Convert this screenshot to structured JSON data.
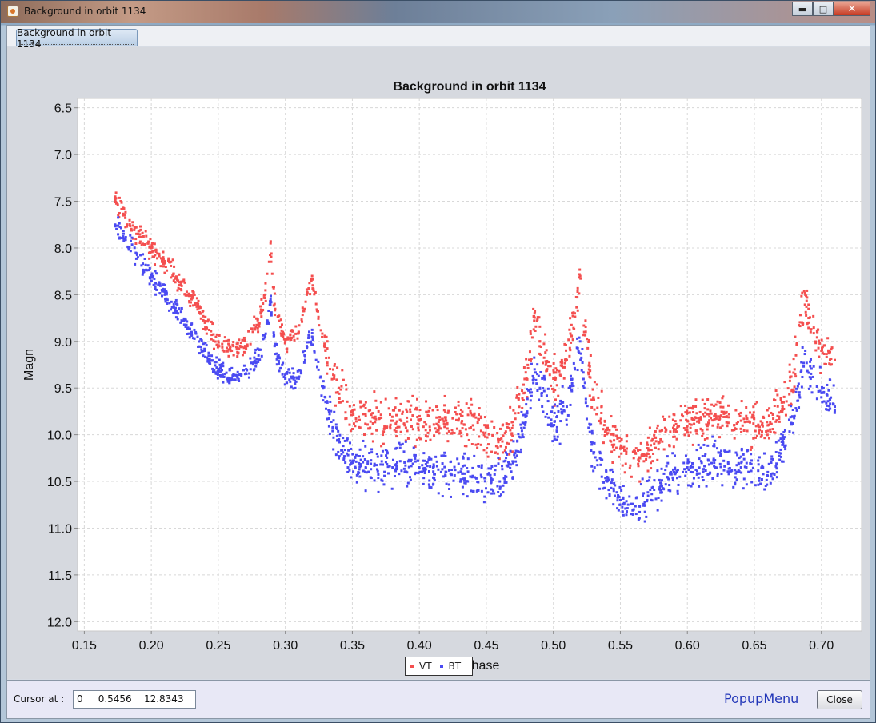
{
  "window": {
    "title": "Background in orbit 1134",
    "controls": [
      "minimize-icon",
      "maximize-icon",
      "close-icon"
    ]
  },
  "tabs": [
    {
      "label": "Background in orbit 1134",
      "selected": true
    }
  ],
  "colors": {
    "vt": "#f44f4f",
    "bt": "#4a4af2",
    "plot_bg": "#ffffff",
    "grid": "#d8d8d8"
  },
  "chart_data": {
    "type": "scatter",
    "title": "Background in orbit 1134",
    "xlabel": "Orb.phase",
    "ylabel": "Magn",
    "xlim": [
      0.145,
      0.73
    ],
    "ylim": [
      6.4,
      12.1
    ],
    "y_inverted": true,
    "xticks": [
      "0.15",
      "0.20",
      "0.25",
      "0.30",
      "0.35",
      "0.40",
      "0.45",
      "0.50",
      "0.55",
      "0.60",
      "0.65",
      "0.70"
    ],
    "yticks": [
      "6.5",
      "7.0",
      "7.5",
      "8.0",
      "8.5",
      "9.0",
      "9.5",
      "10.0",
      "10.5",
      "11.0",
      "11.5",
      "12.0"
    ],
    "grid": true,
    "legend_placement": "bottom-center",
    "series": [
      {
        "name": "VT",
        "color": "#f44f4f",
        "x": [
          0.173,
          0.18,
          0.19,
          0.2,
          0.21,
          0.22,
          0.23,
          0.24,
          0.25,
          0.26,
          0.27,
          0.28,
          0.285,
          0.289,
          0.292,
          0.3,
          0.31,
          0.316,
          0.32,
          0.323,
          0.33,
          0.34,
          0.35,
          0.36,
          0.38,
          0.4,
          0.42,
          0.44,
          0.46,
          0.47,
          0.48,
          0.486,
          0.49,
          0.5,
          0.51,
          0.516,
          0.52,
          0.523,
          0.53,
          0.54,
          0.55,
          0.56,
          0.57,
          0.58,
          0.59,
          0.6,
          0.62,
          0.64,
          0.66,
          0.67,
          0.68,
          0.688,
          0.692,
          0.7,
          0.71
        ],
        "y": [
          7.5,
          7.65,
          7.85,
          8.0,
          8.15,
          8.35,
          8.55,
          8.8,
          9.0,
          9.1,
          9.05,
          8.8,
          8.5,
          7.95,
          8.6,
          9.0,
          8.9,
          8.5,
          8.3,
          8.6,
          9.1,
          9.5,
          9.75,
          9.8,
          9.85,
          9.85,
          9.85,
          9.9,
          10.05,
          9.9,
          9.4,
          8.7,
          9.0,
          9.4,
          9.2,
          8.7,
          8.3,
          8.9,
          9.6,
          9.95,
          10.15,
          10.25,
          10.2,
          10.05,
          9.9,
          9.85,
          9.8,
          9.85,
          9.9,
          9.75,
          9.3,
          8.5,
          8.9,
          9.1,
          9.2
        ]
      },
      {
        "name": "BT",
        "color": "#4a4af2",
        "x": [
          0.173,
          0.18,
          0.19,
          0.2,
          0.21,
          0.22,
          0.23,
          0.24,
          0.25,
          0.26,
          0.27,
          0.28,
          0.285,
          0.289,
          0.292,
          0.3,
          0.31,
          0.316,
          0.32,
          0.323,
          0.33,
          0.34,
          0.35,
          0.36,
          0.38,
          0.4,
          0.42,
          0.44,
          0.46,
          0.47,
          0.48,
          0.486,
          0.49,
          0.5,
          0.51,
          0.516,
          0.52,
          0.523,
          0.53,
          0.54,
          0.55,
          0.56,
          0.57,
          0.58,
          0.59,
          0.6,
          0.62,
          0.64,
          0.66,
          0.67,
          0.68,
          0.688,
          0.692,
          0.7,
          0.71
        ],
        "y": [
          7.75,
          7.9,
          8.1,
          8.3,
          8.5,
          8.7,
          8.9,
          9.1,
          9.3,
          9.4,
          9.35,
          9.15,
          8.95,
          8.55,
          9.05,
          9.4,
          9.4,
          9.05,
          8.95,
          9.2,
          9.65,
          10.05,
          10.3,
          10.35,
          10.35,
          10.35,
          10.4,
          10.45,
          10.5,
          10.3,
          9.8,
          9.3,
          9.5,
          9.9,
          9.7,
          9.3,
          9.0,
          9.5,
          10.2,
          10.5,
          10.7,
          10.8,
          10.7,
          10.55,
          10.4,
          10.35,
          10.3,
          10.35,
          10.4,
          10.2,
          9.8,
          9.1,
          9.4,
          9.6,
          9.7
        ]
      }
    ]
  },
  "legend": {
    "items": [
      {
        "label": "VT"
      },
      {
        "label": "BT"
      }
    ]
  },
  "status": {
    "cursor_label": "Cursor at :",
    "cursor_value": "0     0.5456    12.8343",
    "popup_menu": "PopupMenu",
    "close_label": "Close"
  }
}
